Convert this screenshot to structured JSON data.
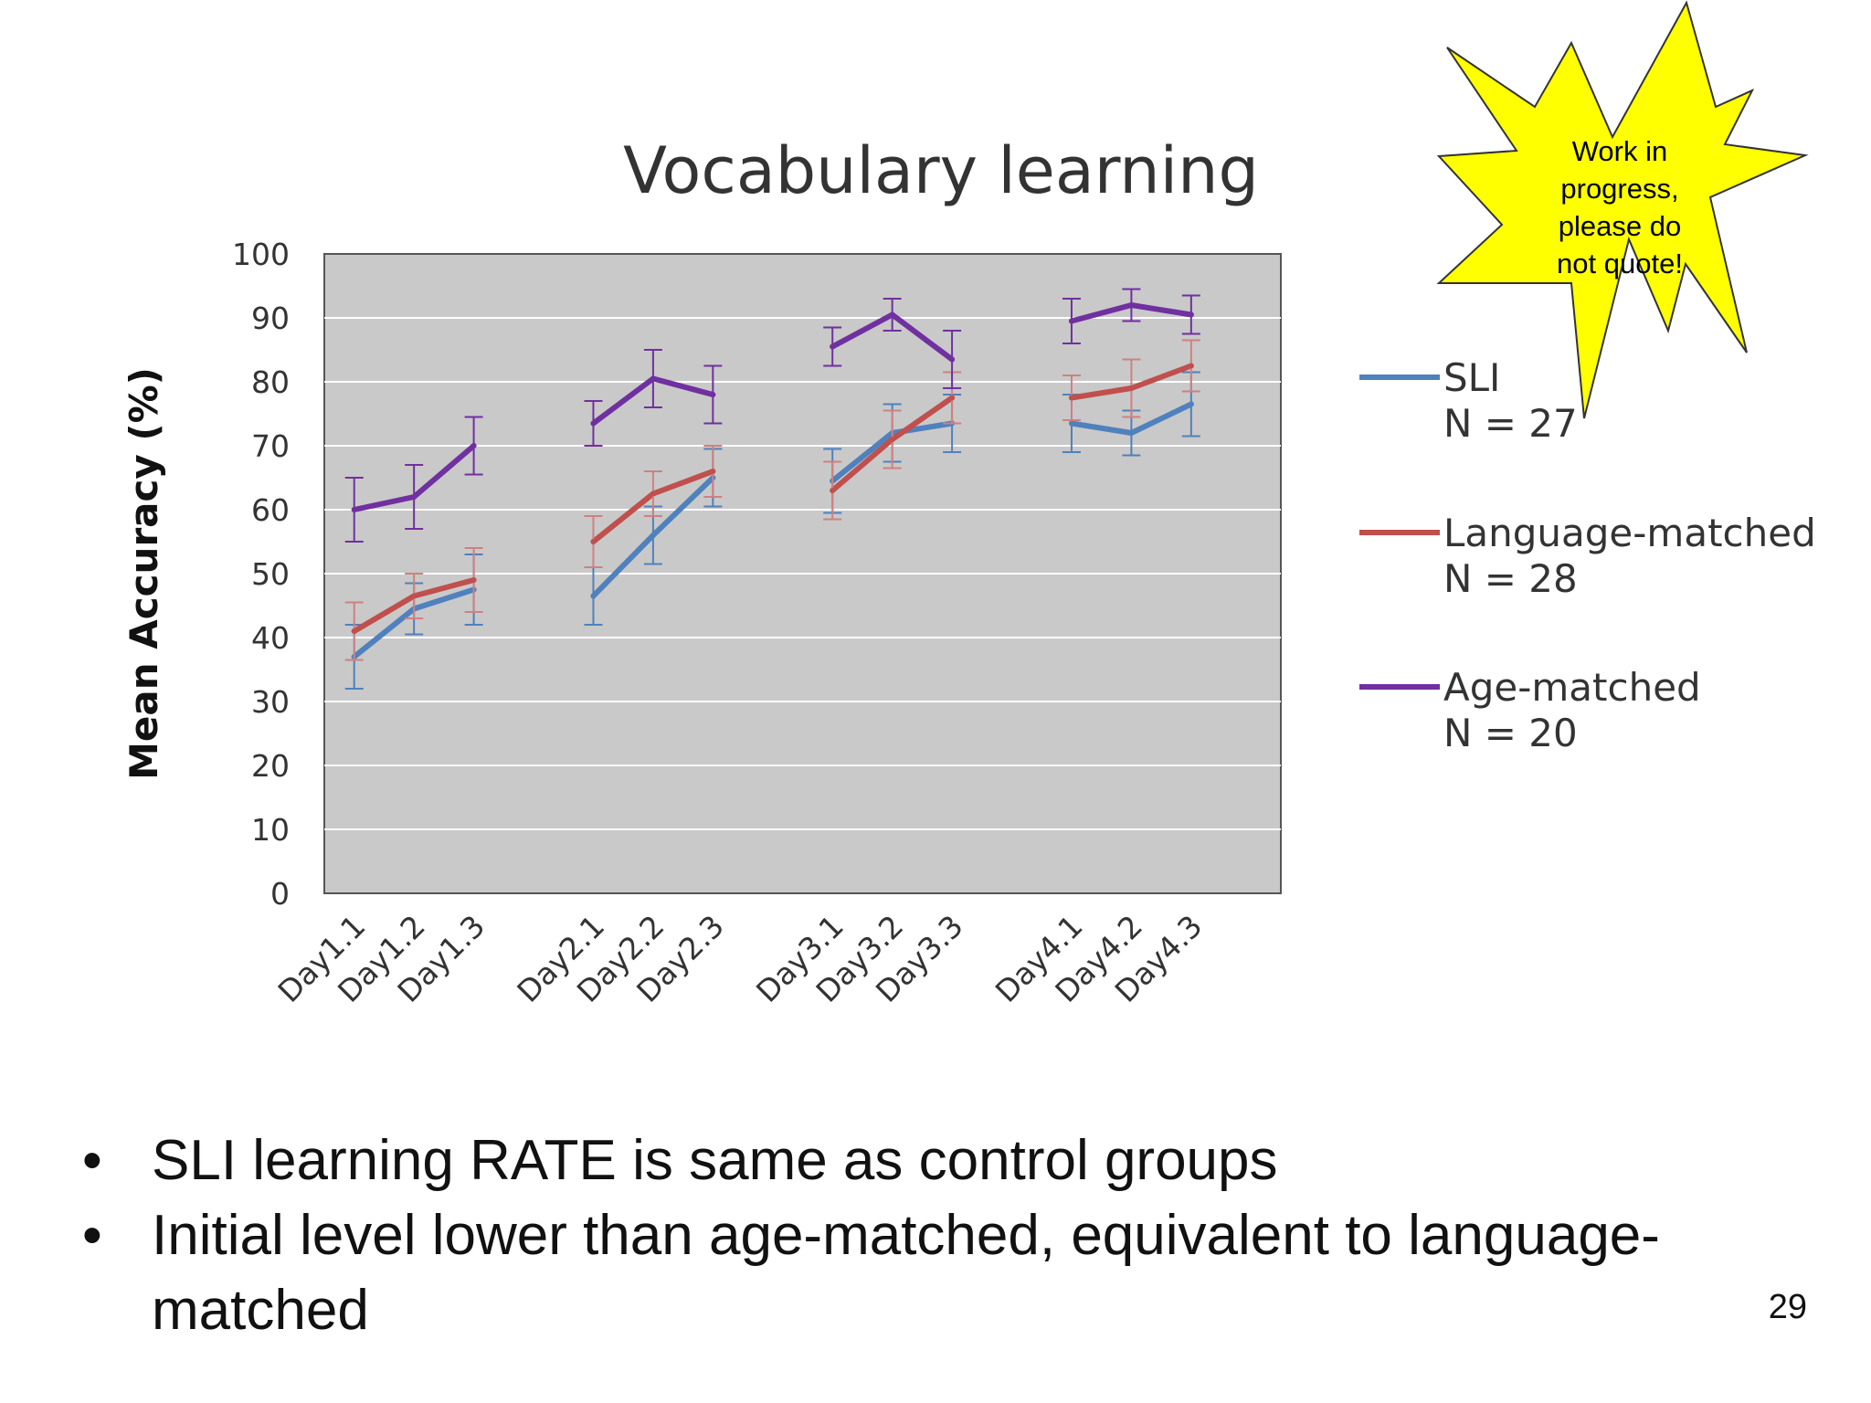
{
  "slide": {
    "bullets": [
      "SLI learning RATE is same as control groups",
      "Initial level lower than age-matched, equivalent to language-matched"
    ],
    "bullet_marker": "•",
    "page_number": "29",
    "burst": {
      "lines": [
        "Work in",
        "progress,",
        "please do",
        "not quote!"
      ],
      "fill_color": "#ffff00"
    },
    "colors": {
      "plot_background": "#c9c9c9",
      "gridline": "#ffffff",
      "error_bar": "#d08080"
    }
  },
  "chart_data": {
    "type": "line",
    "title": "Vocabulary learning",
    "xlabel": "",
    "ylabel": "Mean Accuracy (%)",
    "ylim": [
      0,
      100
    ],
    "yticks": [
      0,
      10,
      20,
      30,
      40,
      50,
      60,
      70,
      80,
      90,
      100
    ],
    "grid": true,
    "legend_position": "right",
    "categories": [
      "Day1.1",
      "Day1.2",
      "Day1.3",
      "Day2.1",
      "Day2.2",
      "Day2.3",
      "Day3.1",
      "Day3.2",
      "Day3.3",
      "Day4.1",
      "Day4.2",
      "Day4.3"
    ],
    "series": [
      {
        "name": "SLI",
        "legend_sublabel": "N = 27",
        "color": "#4f81bd",
        "values": [
          37,
          44.5,
          47.5,
          46.5,
          56,
          65,
          64.5,
          72,
          73.5,
          73.5,
          72,
          76.5
        ],
        "errors": [
          5,
          4,
          5.5,
          4.5,
          4.5,
          4.5,
          5,
          4.5,
          4.5,
          4.5,
          3.5,
          5
        ]
      },
      {
        "name": "Language-matched",
        "legend_sublabel": "N = 28",
        "color": "#c0504d",
        "values": [
          41,
          46.5,
          49,
          55,
          62.5,
          66,
          63,
          71,
          77.5,
          77.5,
          79,
          82.5
        ],
        "errors": [
          4.5,
          3.5,
          5,
          4,
          3.5,
          4,
          4.5,
          4.5,
          4,
          3.5,
          4.5,
          4
        ]
      },
      {
        "name": "Age-matched",
        "legend_sublabel": "N = 20",
        "color": "#7030a0",
        "values": [
          60,
          62,
          70,
          73.5,
          80.5,
          78,
          85.5,
          90.5,
          83.5,
          89.5,
          92,
          90.5
        ],
        "errors": [
          5,
          5,
          4.5,
          3.5,
          4.5,
          4.5,
          3,
          2.5,
          4.5,
          3.5,
          2.5,
          3
        ]
      }
    ]
  }
}
